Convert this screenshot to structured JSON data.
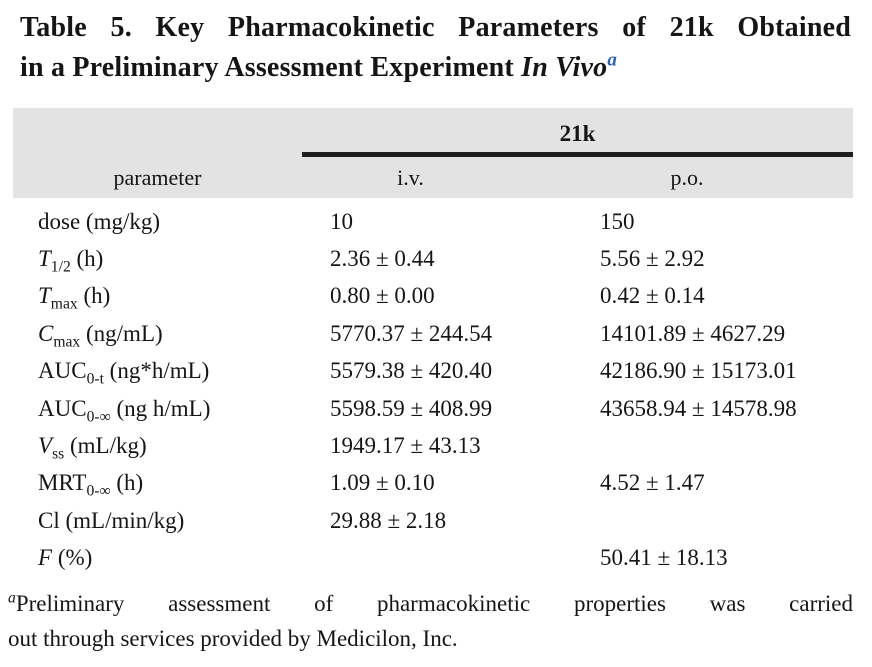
{
  "colors": {
    "header_background": "#e3e3e4",
    "rule": "#1f1f1f",
    "text": "#151515",
    "title_superscript_blue": "#2e5fa8"
  },
  "title": {
    "line1": "Table 5. Key Pharmacokinetic Parameters of 21k Obtained",
    "line2_text": "in a Preliminary Assessment Experiment ",
    "line2_italic": "In Vivo",
    "superscript": "a"
  },
  "table": {
    "group_header": "21k",
    "columns": [
      "parameter",
      "i.v.",
      "p.o."
    ],
    "rows": [
      {
        "param": {
          "text": "dose",
          "italic": false,
          "sub": "",
          "unit": "(mg/kg)"
        },
        "iv": "10",
        "po": "150"
      },
      {
        "param": {
          "text": "T",
          "italic": true,
          "sub": "1/2",
          "unit": "(h)"
        },
        "iv": "2.36 ± 0.44",
        "po": "5.56 ± 2.92"
      },
      {
        "param": {
          "text": "T",
          "italic": true,
          "sub": "max",
          "unit": "(h)"
        },
        "iv": "0.80 ± 0.00",
        "po": "0.42 ± 0.14"
      },
      {
        "param": {
          "text": "C",
          "italic": true,
          "sub": "max",
          "unit": "(ng/mL)"
        },
        "iv": "5770.37 ± 244.54",
        "po": "14101.89 ± 4627.29"
      },
      {
        "param": {
          "text": "AUC",
          "italic": false,
          "sub": "0-t",
          "unit": "(ng*h/mL)"
        },
        "iv": "5579.38 ± 420.40",
        "po": "42186.90 ± 15173.01"
      },
      {
        "param": {
          "text": "AUC",
          "italic": false,
          "sub": "0-∞",
          "unit": "(ng h/mL)"
        },
        "iv": "5598.59 ± 408.99",
        "po": "43658.94 ± 14578.98"
      },
      {
        "param": {
          "text": "V",
          "italic": true,
          "sub": "ss",
          "unit": "(mL/kg)"
        },
        "iv": "1949.17 ± 43.13",
        "po": ""
      },
      {
        "param": {
          "text": "MRT",
          "italic": false,
          "sub": "0-∞",
          "unit": "(h)"
        },
        "iv": "1.09 ± 0.10",
        "po": "4.52 ± 1.47"
      },
      {
        "param": {
          "text": "Cl",
          "italic": false,
          "sub": "",
          "unit": "(mL/min/kg)"
        },
        "iv": "29.88 ± 2.18",
        "po": ""
      },
      {
        "param": {
          "text": "F",
          "italic": true,
          "sub": "",
          "unit": "(%)"
        },
        "iv": "",
        "po": "50.41 ± 18.13"
      }
    ]
  },
  "footnote": {
    "marker": "a",
    "line1": "Preliminary assessment of pharmacokinetic properties was carried",
    "line2": "out through services provided by Medicilon, Inc."
  }
}
